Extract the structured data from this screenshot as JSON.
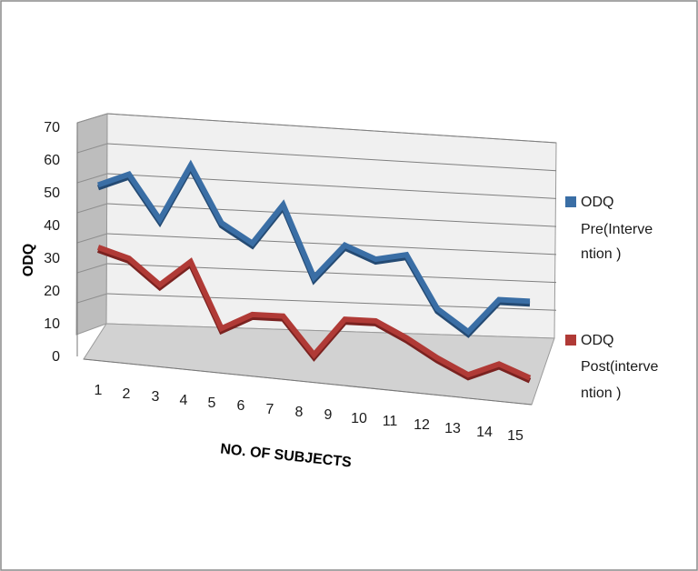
{
  "chart_data": {
    "type": "line",
    "style": "3d",
    "xlabel": "NO. OF SUBJECTS",
    "ylabel": "ODQ",
    "ylim": [
      0,
      70
    ],
    "yticks": [
      "0",
      "10",
      "20",
      "30",
      "40",
      "50",
      "60",
      "70"
    ],
    "categories": [
      "1",
      "2",
      "3",
      "4",
      "5",
      "6",
      "7",
      "8",
      "9",
      "10",
      "11",
      "12",
      "13",
      "14",
      "15"
    ],
    "grid": true,
    "legend_position": "right",
    "series": [
      {
        "name": "ODQ Pre(Intervention )",
        "legend_lines": [
          "ODQ",
          "Pre(Interve",
          "ntion )"
        ],
        "color": "#3a6ea5",
        "values": [
          48,
          52,
          38,
          56,
          38,
          32,
          45,
          22,
          33,
          29,
          31,
          14,
          7,
          18,
          18
        ]
      },
      {
        "name": "ODQ Post(intervention )",
        "legend_lines": [
          "ODQ",
          "Post(interve",
          "ntion )"
        ],
        "color": "#b03a36",
        "values": [
          28,
          25,
          17,
          25,
          4,
          9,
          9,
          -3,
          9,
          9,
          4,
          -2,
          -7,
          -3,
          -7
        ]
      }
    ]
  }
}
